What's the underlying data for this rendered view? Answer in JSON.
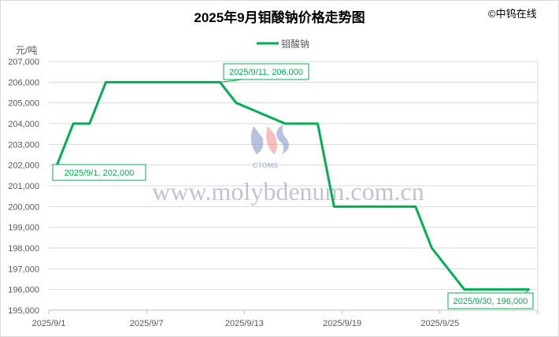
{
  "chart_data": {
    "type": "line",
    "title": "2025年9月钼酸钠价格走势图",
    "copyright": "©中钨在线",
    "ylabel": "元/吨",
    "xlabel": "",
    "ylim": [
      195000,
      207000
    ],
    "yticks": [
      "195,000",
      "196,000",
      "197,000",
      "198,000",
      "199,000",
      "200,000",
      "201,000",
      "202,000",
      "203,000",
      "204,000",
      "205,000",
      "206,000",
      "207,000"
    ],
    "xlim": [
      "2025/9/1",
      "2025/9/30"
    ],
    "xticks": [
      "2025/9/1",
      "2025/9/7",
      "2025/9/13",
      "2025/9/19",
      "2025/9/25"
    ],
    "grid": "horizontal",
    "legend_position": "top",
    "series": [
      {
        "name": "钼酸钠",
        "color": "#00b050",
        "x": [
          "2025/9/1",
          "2025/9/2",
          "2025/9/3",
          "2025/9/4",
          "2025/9/11",
          "2025/9/12",
          "2025/9/15",
          "2025/9/17",
          "2025/9/18",
          "2025/9/23",
          "2025/9/24",
          "2025/9/26",
          "2025/9/30"
        ],
        "values": [
          202000,
          204000,
          204000,
          206000,
          206000,
          205000,
          204000,
          204000,
          200000,
          200000,
          198000,
          196000,
          196000
        ]
      }
    ],
    "annotations": [
      "2025/9/1, 202,000",
      "2025/9/11, 206,000",
      "2025/9/30, 196,000"
    ],
    "watermark": {
      "logo_text": "CTOMS",
      "url": "www.molybdenum.com.cn"
    }
  }
}
